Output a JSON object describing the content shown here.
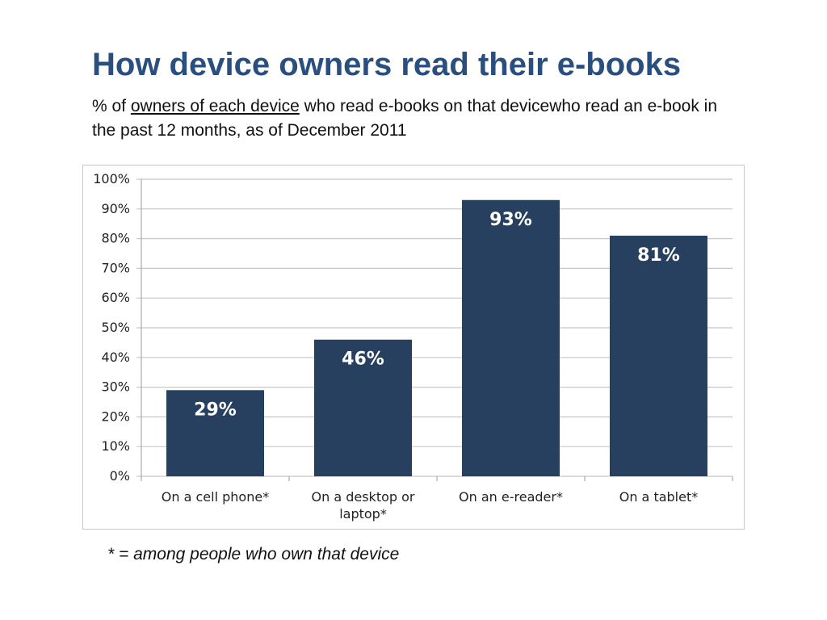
{
  "header": {
    "title": "How device owners read their e-books",
    "subtitle_prefix": "% of ",
    "subtitle_link": "owners of each device",
    "subtitle_rest": " who read e-books on that devicewho read an e-book in the past 12 months, as of December 2011"
  },
  "footnote": "* = among people who own that device",
  "colors": {
    "bar": "#27405f",
    "title": "#2a4f7f",
    "grid": "#c8c8c8"
  },
  "chart_data": {
    "type": "bar",
    "title": "",
    "xlabel": "",
    "ylabel": "",
    "categories": [
      "On a cell phone*",
      "On a desktop or laptop*",
      "On an e-reader*",
      "On a tablet*"
    ],
    "category_lines": [
      [
        "On a cell phone*"
      ],
      [
        "On a desktop or",
        "laptop*"
      ],
      [
        "On an e-reader*"
      ],
      [
        "On a tablet*"
      ]
    ],
    "values": [
      29,
      46,
      93,
      81
    ],
    "value_labels": [
      "29%",
      "46%",
      "93%",
      "81%"
    ],
    "ylim": [
      0,
      100
    ],
    "yticks": [
      0,
      10,
      20,
      30,
      40,
      50,
      60,
      70,
      80,
      90,
      100
    ],
    "ytick_labels": [
      "0%",
      "10%",
      "20%",
      "30%",
      "40%",
      "50%",
      "60%",
      "70%",
      "80%",
      "90%",
      "100%"
    ],
    "grid": true,
    "legend": "none"
  }
}
